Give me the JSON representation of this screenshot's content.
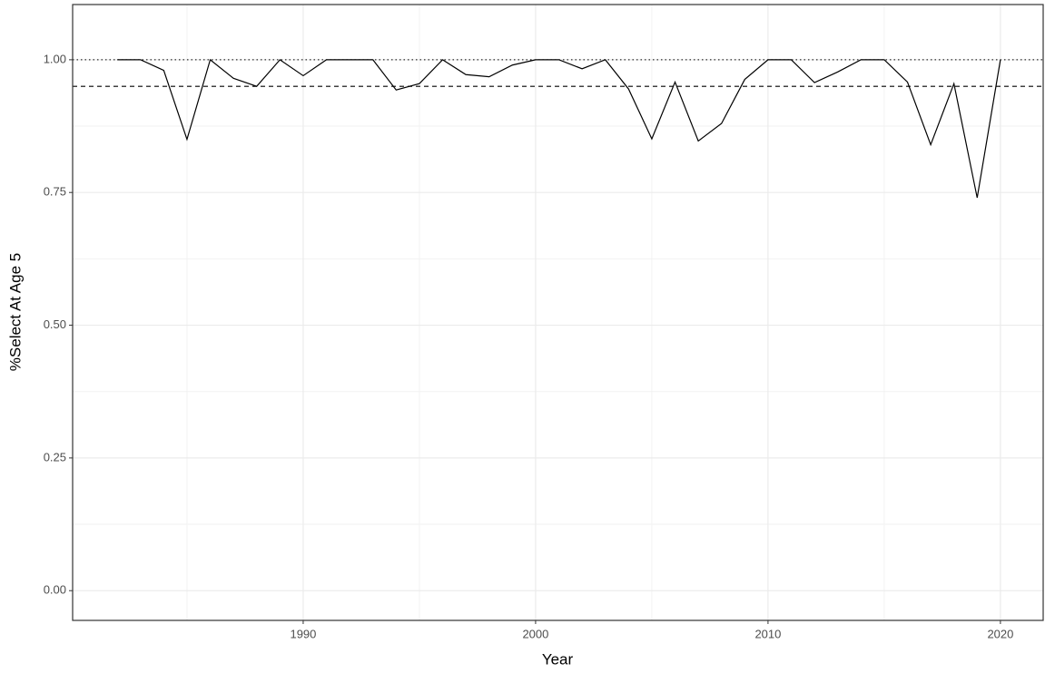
{
  "chart_data": {
    "type": "line",
    "xlabel": "Year",
    "ylabel": "%Select At Age 5",
    "x": [
      1982,
      1983,
      1984,
      1985,
      1986,
      1987,
      1988,
      1989,
      1990,
      1991,
      1992,
      1993,
      1994,
      1995,
      1996,
      1997,
      1998,
      1999,
      2000,
      2001,
      2002,
      2003,
      2004,
      2005,
      2006,
      2007,
      2008,
      2009,
      2010,
      2011,
      2012,
      2013,
      2014,
      2015,
      2016,
      2017,
      2018,
      2019,
      2020
    ],
    "values": [
      1.0,
      1.0,
      0.98,
      0.85,
      1.0,
      0.965,
      0.95,
      1.0,
      0.97,
      1.0,
      1.0,
      1.0,
      0.943,
      0.955,
      1.0,
      0.972,
      0.968,
      0.99,
      1.0,
      1.0,
      0.983,
      1.0,
      0.945,
      0.851,
      0.958,
      0.847,
      0.88,
      0.963,
      1.0,
      1.0,
      0.957,
      0.977,
      1.0,
      1.0,
      0.958,
      0.84,
      0.955,
      0.74,
      1.0
    ],
    "color": "#000000",
    "xlim": [
      1980.08,
      2021.84
    ],
    "xticks": [
      1990,
      2000,
      2010,
      2020
    ],
    "x_minor_grid": [
      1985,
      1995,
      2005,
      2015
    ],
    "ylim": [
      -0.056,
      1.104
    ],
    "yticks": [
      {
        "value": 0,
        "label": "0.00"
      },
      {
        "value": 0.25,
        "label": "0.25"
      },
      {
        "value": 0.5,
        "label": "0.50"
      },
      {
        "value": 0.75,
        "label": "0.75"
      },
      {
        "value": 1,
        "label": "1.00"
      }
    ],
    "y_minor_grid": [
      0.125,
      0.375,
      0.625,
      0.875
    ],
    "reference_lines": [
      {
        "value": 1,
        "style": "dotted"
      },
      {
        "value": 0.95,
        "style": "dashed"
      }
    ],
    "grid": true
  }
}
